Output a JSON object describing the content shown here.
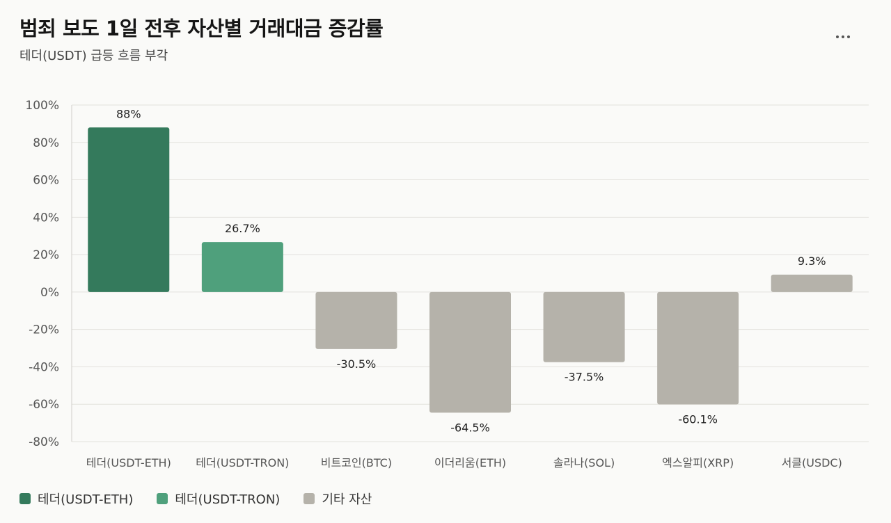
{
  "header": {
    "title": "범죄 보도 1일 전후 자산별 거래대금 증감률",
    "subtitle": "테더(USDT) 급등 흐름 부각",
    "more_icon": "more-horizontal-icon"
  },
  "colors": {
    "usdt_eth": "#347a5c",
    "usdt_tron": "#4fa07c",
    "other": "#b5b2aa",
    "grid": "#e2e1dc"
  },
  "legend": [
    {
      "label": "테더(USDT-ETH)",
      "color": "#347a5c"
    },
    {
      "label": "테더(USDT-TRON)",
      "color": "#4fa07c"
    },
    {
      "label": "기타 자산",
      "color": "#b5b2aa"
    }
  ],
  "chart_data": {
    "type": "bar",
    "categories": [
      "테더(USDT-ETH)",
      "테더(USDT-TRON)",
      "비트코인(BTC)",
      "이더리움(ETH)",
      "솔라나(SOL)",
      "엑스알피(XRP)",
      "서클(USDC)"
    ],
    "values": [
      88,
      26.7,
      -30.5,
      -64.5,
      -37.5,
      -60.1,
      9.3
    ],
    "data_labels": [
      "88%",
      "26.7%",
      "-30.5%",
      "-64.5%",
      "-37.5%",
      "-60.1%",
      "9.3%"
    ],
    "groups": [
      "테더(USDT-ETH)",
      "테더(USDT-TRON)",
      "기타 자산",
      "기타 자산",
      "기타 자산",
      "기타 자산",
      "기타 자산"
    ],
    "ylim": [
      -80,
      100
    ],
    "yticks": [
      100,
      80,
      60,
      40,
      20,
      0,
      -20,
      -40,
      -60,
      -80
    ],
    "ytick_labels": [
      "100%",
      "80%",
      "60%",
      "40%",
      "20%",
      "0%",
      "-20%",
      "-40%",
      "-60%",
      "-80%"
    ],
    "grid": true,
    "legend_position": "bottom-left"
  }
}
